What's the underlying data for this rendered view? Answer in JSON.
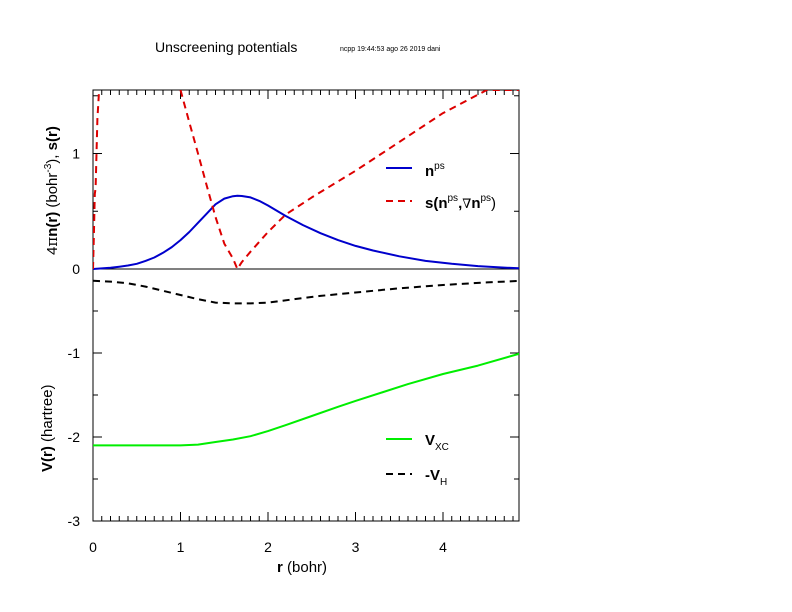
{
  "page": {
    "title": "Unscreening potentials",
    "stamp": "ncpp 19:44:53 ago 26 2019 dani"
  },
  "chart_data": [
    {
      "type": "line",
      "panel": "top",
      "ylabel": "4πn(r) (bohr⁻³), s(r)",
      "ylabel_parts": {
        "prefix": "4",
        "pi": "π",
        "n": "n(r)",
        "unit_open": " (bohr",
        "exp": "-3",
        "unit_close": "), ",
        "s": "s(r)"
      },
      "xlim": [
        0,
        4.9
      ],
      "ylim": [
        0,
        1.55
      ],
      "yticks": [
        0,
        1
      ],
      "ytick_labels": [
        "0",
        "1"
      ],
      "legend_position": "right",
      "series": [
        {
          "name": "n^ps",
          "legend": {
            "main": "n",
            "sup": "ps"
          },
          "color": "#0000cc",
          "dash": "solid",
          "x": [
            0,
            0.1,
            0.2,
            0.3,
            0.4,
            0.5,
            0.6,
            0.7,
            0.8,
            0.9,
            1.0,
            1.1,
            1.2,
            1.3,
            1.4,
            1.5,
            1.6,
            1.65,
            1.7,
            1.8,
            1.9,
            2.0,
            2.2,
            2.4,
            2.6,
            2.8,
            3.0,
            3.2,
            3.5,
            3.8,
            4.1,
            4.4,
            4.7,
            4.9
          ],
          "y": [
            0.0,
            0.005,
            0.01,
            0.02,
            0.03,
            0.045,
            0.07,
            0.1,
            0.14,
            0.19,
            0.25,
            0.32,
            0.4,
            0.48,
            0.56,
            0.61,
            0.63,
            0.635,
            0.632,
            0.62,
            0.59,
            0.55,
            0.46,
            0.38,
            0.31,
            0.25,
            0.2,
            0.16,
            0.11,
            0.07,
            0.045,
            0.025,
            0.012,
            0.005
          ]
        },
        {
          "name": "s(n^ps, ∇n^ps)",
          "legend": {
            "main": "s(n",
            "sup1": "ps",
            "mid": ",",
            "nabla": "∇",
            "n2": "n",
            "sup2": "ps",
            "close": ")"
          },
          "color": "#dd0000",
          "dash": "dashed",
          "segments": [
            {
              "x": [
                0.0,
                0.01,
                0.02,
                0.03,
                0.05,
                0.07
              ],
              "y": [
                0.0,
                0.3,
                0.65,
                0.7,
                1.3,
                1.55
              ]
            },
            {
              "x": [
                1.0,
                1.1,
                1.2,
                1.3,
                1.4,
                1.5,
                1.6,
                1.65,
                1.7,
                1.8,
                2.0,
                2.2,
                2.5,
                3.0,
                3.5,
                4.0,
                4.5,
                4.9
              ],
              "y": [
                1.55,
                1.27,
                1.0,
                0.72,
                0.45,
                0.22,
                0.09,
                0.0,
                0.06,
                0.15,
                0.32,
                0.47,
                0.62,
                0.85,
                1.1,
                1.35,
                1.55,
                1.55
              ]
            }
          ]
        }
      ]
    },
    {
      "type": "line",
      "panel": "bottom",
      "ylabel": "V(r) (hartree)",
      "ylabel_parts": {
        "v": "V(r)",
        "unit": " (hartree)"
      },
      "xlabel": "r (bohr)",
      "xlabel_parts": {
        "r": "r",
        "unit": " (bohr)"
      },
      "xlim": [
        0,
        4.9
      ],
      "ylim": [
        -3,
        0
      ],
      "xticks": [
        0,
        1,
        2,
        3,
        4
      ],
      "xtick_labels": [
        "0",
        "1",
        "2",
        "3",
        "4"
      ],
      "yticks": [
        -3,
        -2,
        -1
      ],
      "ytick_labels": [
        "-3",
        "-2",
        "-1"
      ],
      "legend_position": "right",
      "series": [
        {
          "name": "V_XC",
          "legend": {
            "main": "V",
            "sub": "XC"
          },
          "color": "#00ee00",
          "dash": "solid",
          "x": [
            0,
            0.5,
            1.0,
            1.2,
            1.4,
            1.6,
            1.8,
            2.0,
            2.2,
            2.5,
            2.8,
            3.0,
            3.3,
            3.6,
            4.0,
            4.4,
            4.9
          ],
          "y": [
            -2.1,
            -2.1,
            -2.1,
            -2.09,
            -2.06,
            -2.03,
            -1.99,
            -1.93,
            -1.86,
            -1.75,
            -1.64,
            -1.57,
            -1.47,
            -1.37,
            -1.25,
            -1.15,
            -1.0
          ]
        },
        {
          "name": "-V_H",
          "legend": {
            "main": "-V",
            "sub": "H"
          },
          "color": "#000000",
          "dash": "dashed",
          "x": [
            0,
            0.2,
            0.4,
            0.6,
            0.8,
            1.0,
            1.2,
            1.4,
            1.6,
            1.8,
            2.0,
            2.3,
            2.6,
            3.0,
            3.5,
            4.0,
            4.5,
            4.9
          ],
          "y": [
            -0.14,
            -0.15,
            -0.17,
            -0.21,
            -0.26,
            -0.31,
            -0.36,
            -0.4,
            -0.41,
            -0.41,
            -0.4,
            -0.36,
            -0.32,
            -0.28,
            -0.23,
            -0.19,
            -0.16,
            -0.14
          ]
        }
      ]
    }
  ]
}
